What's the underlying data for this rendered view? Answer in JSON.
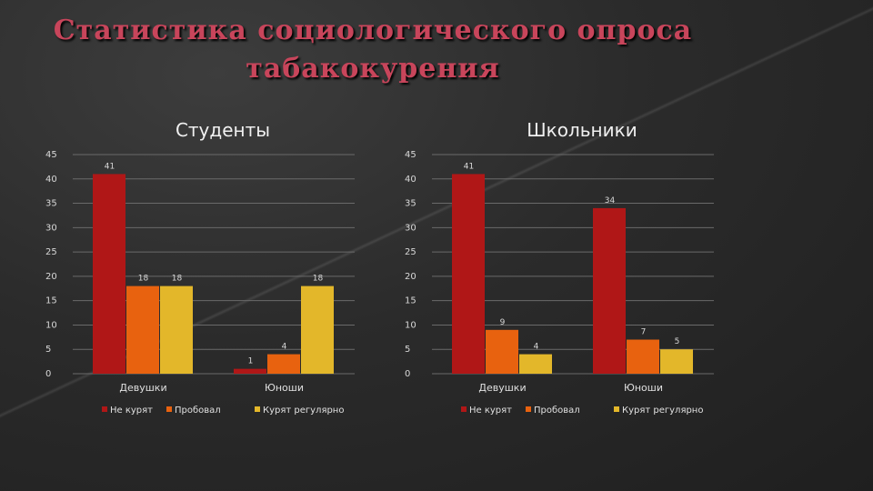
{
  "title": {
    "line1": "Статистика социологического опроса",
    "line2": "табакокурения"
  },
  "chart_data": [
    {
      "type": "bar",
      "title": "Студенты",
      "categories": [
        "Девушки",
        "Юноши"
      ],
      "ylim": [
        0,
        45
      ],
      "yticks": [
        0,
        5,
        10,
        15,
        20,
        25,
        30,
        35,
        40,
        45
      ],
      "grid": true,
      "legend": "bottom",
      "series": [
        {
          "name": "Не курят",
          "values": [
            41,
            1
          ],
          "color": "#b01717"
        },
        {
          "name": "Пробовал",
          "values": [
            18,
            4
          ],
          "color": "#e8620f"
        },
        {
          "name": "Курят регулярно",
          "values": [
            18,
            18
          ],
          "color": "#e3b72a"
        }
      ],
      "data_labels": [
        [
          "41",
          "18",
          "18"
        ],
        [
          "1",
          "4",
          "18"
        ]
      ]
    },
    {
      "type": "bar",
      "title": "Школьники",
      "categories": [
        "Девушки",
        "Юноши"
      ],
      "ylim": [
        0,
        45
      ],
      "yticks": [
        0,
        5,
        10,
        15,
        20,
        25,
        30,
        35,
        40,
        45
      ],
      "grid": true,
      "legend": "bottom",
      "series": [
        {
          "name": "Не курят",
          "values": [
            41,
            34
          ],
          "color": "#b01717"
        },
        {
          "name": "Пробовал",
          "values": [
            9,
            7
          ],
          "color": "#e8620f"
        },
        {
          "name": "Курят регулярно",
          "values": [
            4,
            5
          ],
          "color": "#e3b72a"
        }
      ],
      "data_labels": [
        [
          "41",
          "9",
          "4"
        ],
        [
          "34",
          "7",
          "5"
        ]
      ]
    }
  ]
}
